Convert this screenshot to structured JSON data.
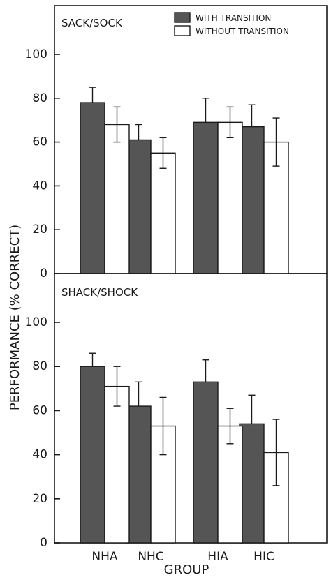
{
  "chart_data": {
    "type": "bar",
    "ylabel": "PERFORMANCE (% CORRECT)",
    "xlabel": "GROUP",
    "categories": [
      "NHA",
      "NHC",
      "HIA",
      "HIC"
    ],
    "yticks": [
      0,
      20,
      40,
      60,
      80,
      100
    ],
    "ylim": [
      0,
      100
    ],
    "grid": false,
    "legend": {
      "position": "top-right",
      "entries": [
        {
          "label": "WITH TRANSITION",
          "color": "#555555"
        },
        {
          "label": "WITHOUT TRANSITION",
          "color": "#ffffff"
        }
      ]
    },
    "panels": [
      {
        "title": "SACK/SOCK",
        "series": [
          {
            "name": "WITH TRANSITION",
            "values": [
              78,
              61,
              69,
              67
            ],
            "errors": [
              7,
              7,
              11,
              10
            ]
          },
          {
            "name": "WITHOUT TRANSITION",
            "values": [
              68,
              55,
              69,
              60
            ],
            "errors": [
              8,
              7,
              7,
              11
            ]
          }
        ]
      },
      {
        "title": "SHACK/SHOCK",
        "series": [
          {
            "name": "WITH TRANSITION",
            "values": [
              80,
              62,
              73,
              54
            ],
            "errors": [
              6,
              11,
              10,
              13
            ]
          },
          {
            "name": "WITHOUT TRANSITION",
            "values": [
              71,
              53,
              53,
              41
            ],
            "errors": [
              9,
              13,
              8,
              15
            ]
          }
        ]
      }
    ]
  }
}
